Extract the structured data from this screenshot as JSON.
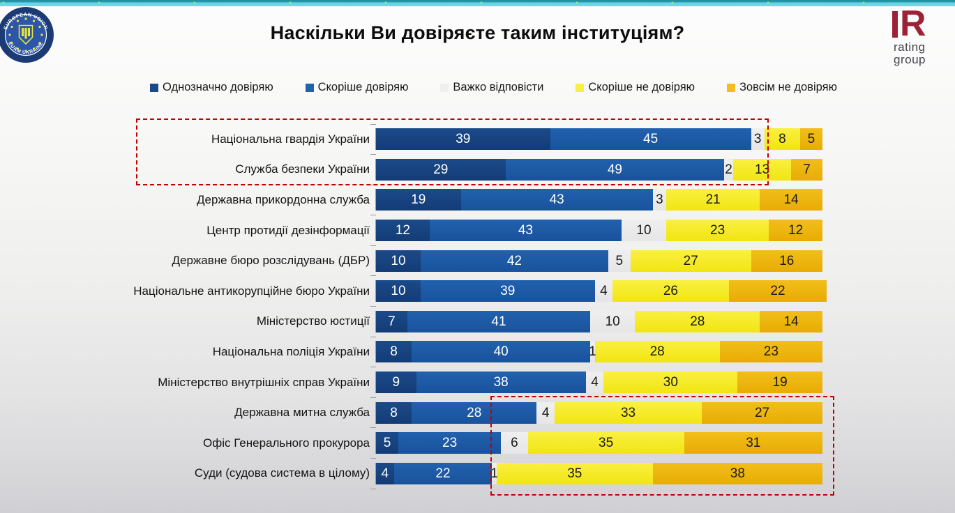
{
  "header": {
    "title": "Наскільки Ви довіряєте таким інституціям?"
  },
  "logos": {
    "euam": {
      "top_text": "EUROPEAN UNION",
      "bottom_text": "EUAM UKRAINE",
      "ring_color": "#1c3a74",
      "inner_color": "#2d55a8",
      "accent_color": "#e6e63c"
    },
    "rating": {
      "mark": "R",
      "line1": "rating",
      "line2": "group",
      "color": "#9e2235"
    }
  },
  "chart_data": {
    "type": "bar",
    "orientation": "horizontal",
    "stacked": true,
    "title": "Наскільки Ви довіряєте таким інституціям?",
    "unit": "percent",
    "xlim": [
      0,
      100
    ],
    "categories": [
      "Національна гвардія України",
      "Служба безпеки України",
      "Державна прикордонна служба",
      "Центр протидії дезінформації",
      "Державне бюро розслідувань (ДБР)",
      "Національне антикорупційне бюро України",
      "Міністерство юстиції",
      "Національна поліція України",
      "Міністерство внутрішніх справ України",
      "Державна митна служба",
      "Офіс Генерального прокурора",
      "Суди (судова система в цілому)"
    ],
    "series": [
      {
        "name": "Однозначно довіряю",
        "color": "#1b4a8a",
        "color_dark": "#133c75",
        "text_color": "#ffffff",
        "values": [
          39,
          29,
          19,
          12,
          10,
          10,
          7,
          8,
          9,
          8,
          5,
          4
        ]
      },
      {
        "name": "Скоріше довіряю",
        "color": "#2161ae",
        "color_dark": "#1a529c",
        "text_color": "#ffffff",
        "values": [
          45,
          49,
          43,
          43,
          42,
          39,
          41,
          40,
          38,
          28,
          23,
          22
        ]
      },
      {
        "name": "Важко відповісти",
        "color": "#efefef",
        "color_dark": "#e6e6e7",
        "text_color": "#1a1a1a",
        "values": [
          3,
          2,
          3,
          10,
          5,
          4,
          10,
          1,
          4,
          4,
          6,
          1
        ]
      },
      {
        "name": "Скоріше не довіряю",
        "color": "#faf041",
        "color_dark": "#f1e512",
        "text_color": "#1a1a1a",
        "values": [
          8,
          13,
          21,
          23,
          27,
          26,
          28,
          28,
          30,
          33,
          35,
          35
        ]
      },
      {
        "name": "Зовсім не довіряю",
        "color": "#f2be1a",
        "color_dark": "#e8ac04",
        "text_color": "#1a1a1a",
        "values": [
          5,
          7,
          14,
          12,
          16,
          22,
          14,
          23,
          19,
          27,
          31,
          38
        ]
      }
    ],
    "legend_position": "top",
    "highlights": [
      {
        "note": "most trusted institutions",
        "row_indexes": [
          0,
          1
        ],
        "border_color": "#c00000"
      },
      {
        "note": "most distrusted institutions (distrust side)",
        "row_indexes": [
          9,
          10,
          11
        ],
        "border_color": "#c00000"
      }
    ]
  }
}
